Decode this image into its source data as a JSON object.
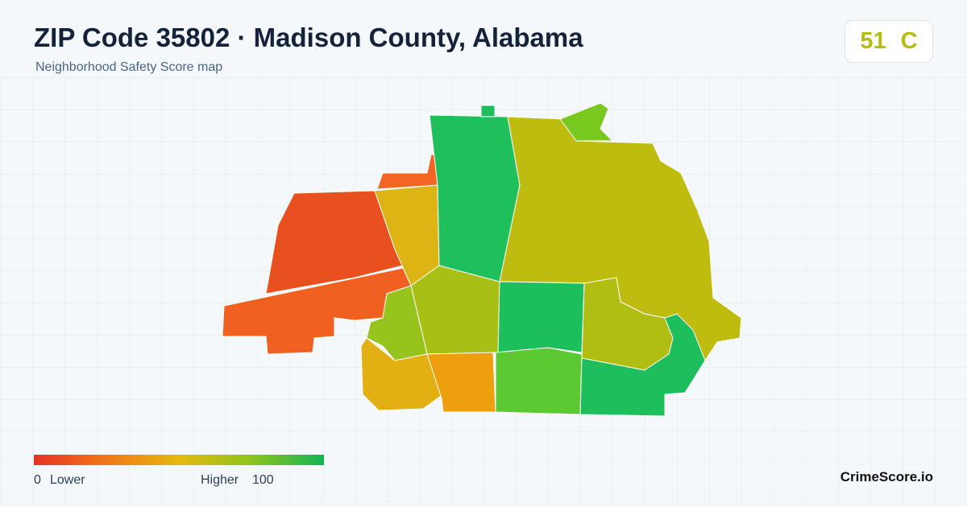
{
  "header": {
    "title": "ZIP Code 35802 · Madison County, Alabama",
    "subtitle": "Neighborhood Safety Score map"
  },
  "score": {
    "value": 51,
    "grade": "C"
  },
  "legend": {
    "min": 0,
    "min_label": "Lower",
    "max_label": "Higher",
    "max": 100
  },
  "footer": {
    "brand": "CrimeScore.io"
  }
}
